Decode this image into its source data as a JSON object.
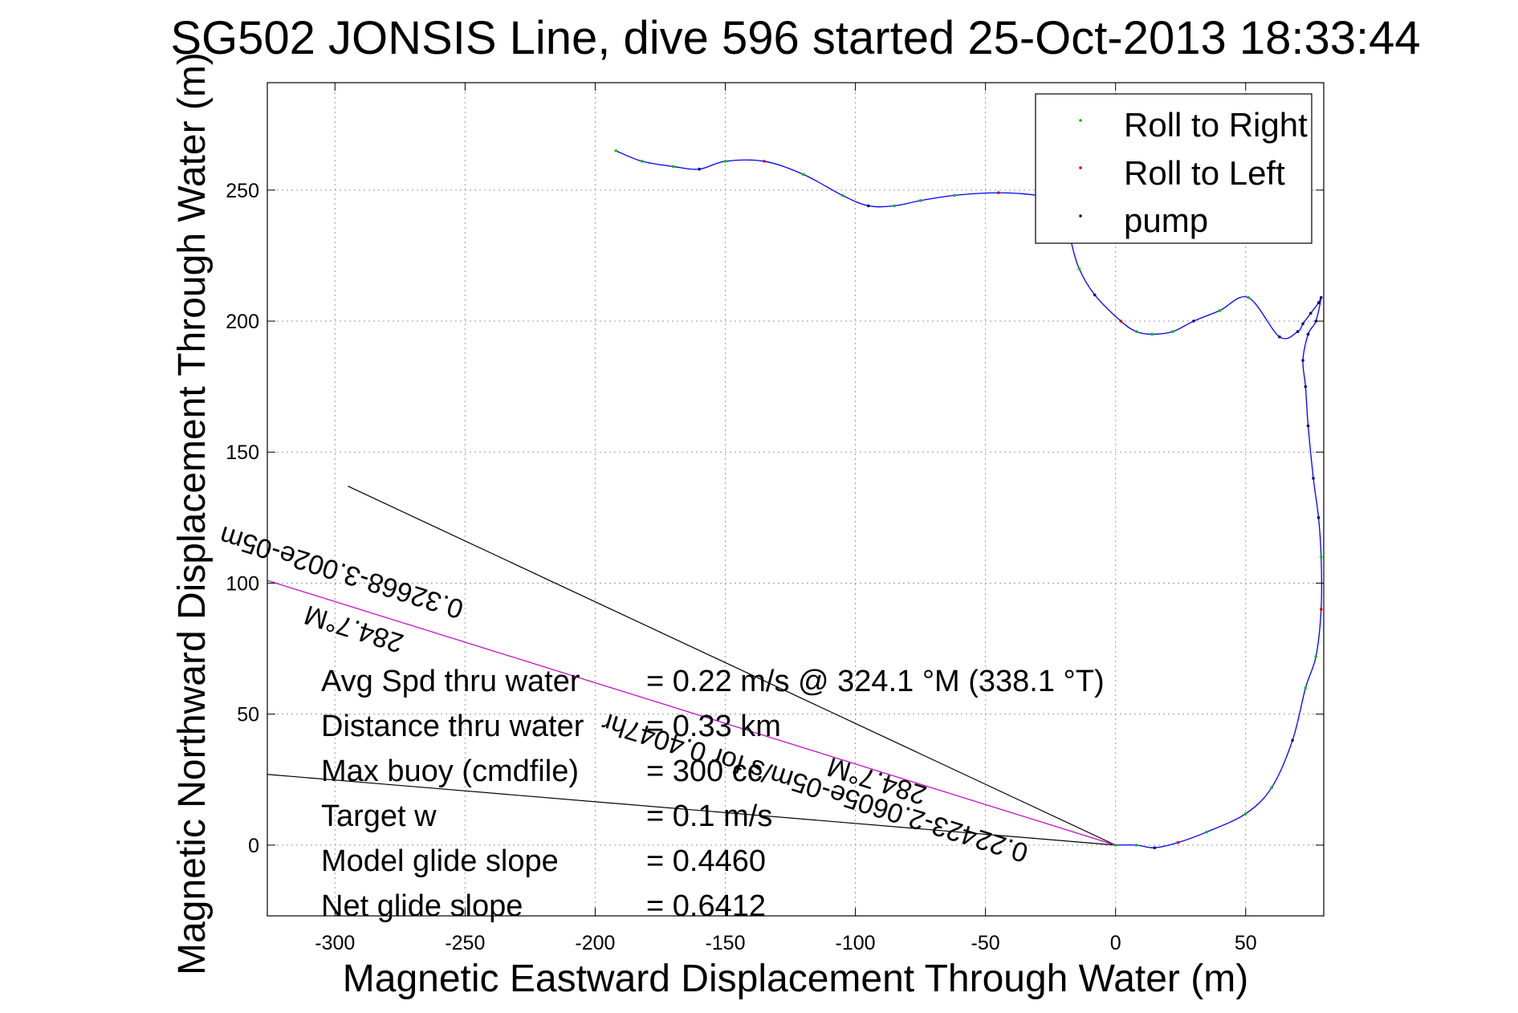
{
  "chart_data": {
    "type": "line",
    "title": "SG502 JONSIS Line, dive 596 started 25-Oct-2013 18:33:44",
    "xlabel": "Magnetic Eastward Displacement Through Water (m)",
    "ylabel": "Magnetic Northward Displacement Through Water (m)",
    "xlim": [
      -326,
      80
    ],
    "ylim": [
      -27,
      291
    ],
    "xticks": [
      -300,
      -250,
      -200,
      -150,
      -100,
      -50,
      0,
      50
    ],
    "yticks": [
      0,
      50,
      100,
      150,
      200,
      250
    ],
    "grid": true,
    "legend_position": "top-right",
    "legend": [
      {
        "label": "Roll to Right",
        "color": "#00c000"
      },
      {
        "label": "Roll to Left",
        "color": "#e00000"
      },
      {
        "label": "pump",
        "color": "#000080"
      }
    ],
    "track": {
      "color": "#0000ff",
      "x": [
        0,
        8,
        15,
        24,
        35,
        50,
        60,
        68,
        73,
        77,
        79,
        79,
        78,
        76,
        74,
        73,
        72,
        74,
        77,
        79,
        78,
        75,
        72,
        70,
        63,
        51,
        40,
        30,
        22,
        14,
        8,
        2,
        -8,
        -14,
        -17,
        -19,
        -22,
        -30,
        -45,
        -62,
        -75,
        -85,
        -95,
        -105,
        -120,
        -135,
        -150,
        -160,
        -170,
        -182,
        -192
      ],
      "y": [
        0,
        0,
        -1,
        1,
        5,
        12,
        22,
        40,
        60,
        72,
        90,
        110,
        125,
        140,
        160,
        175,
        185,
        195,
        200,
        209,
        207,
        203,
        199,
        196,
        194,
        209,
        204,
        200,
        196,
        195,
        196,
        200,
        210,
        220,
        230,
        240,
        246,
        248,
        249,
        248,
        246,
        244,
        244,
        248,
        256,
        261,
        261,
        258,
        259,
        261,
        265
      ]
    },
    "heading_lines": [
      {
        "from": [
          0,
          0
        ],
        "to": [
          -295,
          137
        ],
        "color": "#000000"
      },
      {
        "from": [
          0,
          0
        ],
        "to": [
          -326,
          27
        ],
        "color": "#000000"
      },
      {
        "from": [
          0,
          0
        ],
        "to": [
          -326,
          101
        ],
        "color": "#c000c0"
      }
    ],
    "rotated_annotations": [
      {
        "text": "0.22423-2.0605e-05m/s for 0.4047hr",
        "anchor": [
          -33,
          0
        ]
      },
      {
        "text": "284.7°M",
        "anchor": [
          -72,
          22
        ]
      },
      {
        "text": "0.32668-3.002e-05m",
        "anchor": [
          -250,
          93
        ]
      },
      {
        "text": "284.7°M",
        "anchor": [
          -273,
          80
        ]
      }
    ],
    "stats": [
      {
        "label": "Avg Spd thru water",
        "value": "=  0.22 m/s @ 324.1 °M (338.1 °T)"
      },
      {
        "label": "Distance thru water",
        "value": "= 0.33 km"
      },
      {
        "label": "Max buoy (cmdfile)",
        "value": "= 300 cc"
      },
      {
        "label": "Target w",
        "value": "= 0.1 m/s"
      },
      {
        "label": "Model glide slope",
        "value": "= 0.4460"
      },
      {
        "label": "Net glide slope",
        "value": "= 0.6412"
      }
    ]
  }
}
